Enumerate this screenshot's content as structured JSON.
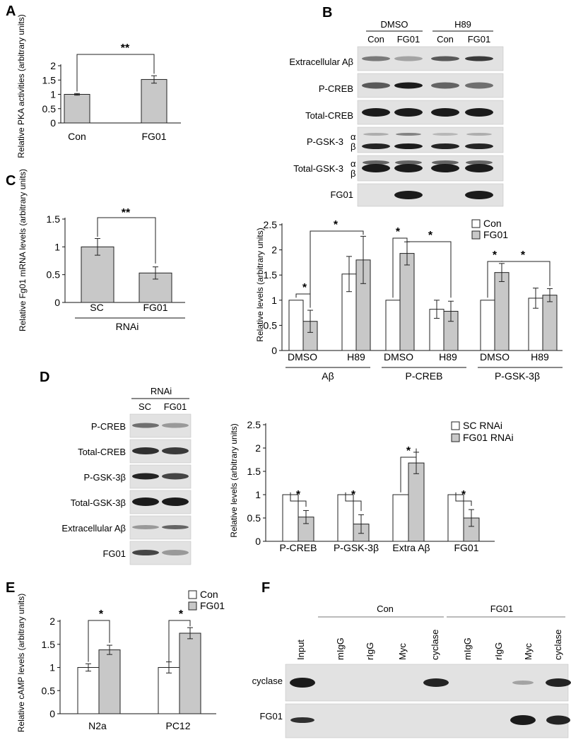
{
  "panel_labels": [
    "A",
    "B",
    "C",
    "D",
    "E",
    "F"
  ],
  "chart_data": [
    {
      "panel": "A",
      "type": "bar",
      "categories": [
        "Con",
        "FG01"
      ],
      "values": [
        1.0,
        1.52
      ],
      "errors": [
        0.03,
        0.13
      ],
      "ylabel": "Relative PKA activities (arbitrary units)",
      "ylim": [
        0,
        2
      ],
      "yticks": [
        "0",
        "0.5",
        "1",
        "1.5",
        "2"
      ],
      "significance": [
        {
          "between": [
            0,
            1
          ],
          "label": "**"
        }
      ]
    },
    {
      "panel": "C",
      "type": "bar",
      "categories": [
        "SC",
        "FG01"
      ],
      "values": [
        1.0,
        0.53
      ],
      "errors": [
        0.15,
        0.11
      ],
      "ylabel": "Relative Fg01 mRNA levels (arbitrary units)",
      "group_label": "RNAi",
      "ylim": [
        0,
        1.5
      ],
      "yticks": [
        "0",
        "0.5",
        "1",
        "1.5"
      ],
      "significance": [
        {
          "between": [
            0,
            1
          ],
          "label": "**"
        }
      ]
    },
    {
      "panel": "B",
      "type": "bar",
      "legend": [
        "Con",
        "FG01"
      ],
      "ylabel": "Relative levels (arbitrary units)",
      "ylim": [
        0,
        2.5
      ],
      "yticks": [
        "0",
        "0.5",
        "1",
        "1.5",
        "2",
        "2.5"
      ],
      "conditions": [
        "DMSO",
        "H89",
        "DMSO",
        "H89",
        "DMSO",
        "H89"
      ],
      "groups": [
        "Aβ",
        "P-CREB",
        "P-GSK-3β"
      ],
      "series": [
        {
          "name": "Con",
          "values": [
            1.0,
            1.52,
            1.0,
            0.82,
            1.0,
            1.04
          ],
          "errors": [
            0,
            0.35,
            0,
            0.18,
            0,
            0.2
          ]
        },
        {
          "name": "FG01",
          "values": [
            0.58,
            1.8,
            1.93,
            0.78,
            1.55,
            1.1
          ],
          "errors": [
            0.22,
            0.47,
            0.23,
            0.2,
            0.18,
            0.13
          ]
        }
      ],
      "significance": [
        "*",
        "*",
        "*",
        "*",
        "*",
        "*"
      ]
    },
    {
      "panel": "D",
      "type": "bar",
      "legend": [
        "SC RNAi",
        "FG01 RNAi"
      ],
      "ylabel": "Relative levels (arbitrary units)",
      "ylim": [
        0,
        2.5
      ],
      "yticks": [
        "0",
        "0.5",
        "1",
        "1.5",
        "2",
        "2.5"
      ],
      "categories": [
        "P-CREB",
        "P-GSK-3β",
        "Extra Aβ",
        "FG01"
      ],
      "series": [
        {
          "name": "SC RNAi",
          "values": [
            1.0,
            1.0,
            1.0,
            1.0
          ],
          "errors": [
            0,
            0,
            0,
            0
          ]
        },
        {
          "name": "FG01 RNAi",
          "values": [
            0.52,
            0.37,
            1.68,
            0.5
          ],
          "errors": [
            0.14,
            0.2,
            0.23,
            0.18
          ]
        }
      ],
      "significance": [
        "*",
        "*",
        "*",
        "*"
      ]
    },
    {
      "panel": "E",
      "type": "bar",
      "legend": [
        "Con",
        "FG01"
      ],
      "ylabel": "Relative cAMP levels (arbitrary units)",
      "ylim": [
        0,
        2
      ],
      "yticks": [
        "0",
        "0.5",
        "1",
        "1.5",
        "2"
      ],
      "categories": [
        "N2a",
        "PC12"
      ],
      "series": [
        {
          "name": "Con",
          "values": [
            1.0,
            1.0
          ],
          "errors": [
            0.08,
            0.12
          ]
        },
        {
          "name": "FG01",
          "values": [
            1.38,
            1.74
          ],
          "errors": [
            0.1,
            0.12
          ]
        }
      ],
      "significance": [
        "*",
        "*"
      ]
    }
  ],
  "blot_B": {
    "header_groups": [
      "DMSO",
      "H89"
    ],
    "lanes": [
      "Con",
      "FG01",
      "Con",
      "FG01"
    ],
    "rows": [
      "Extracellular Aβ",
      "P-CREB",
      "Total-CREB",
      "P-GSK-3",
      "Total-GSK-3",
      "FG01"
    ],
    "alpha": "α",
    "beta": "β"
  },
  "blot_D": {
    "header": "RNAi",
    "lanes": [
      "SC",
      "FG01"
    ],
    "rows": [
      "P-CREB",
      "Total-CREB",
      "P-GSK-3β",
      "Total-GSK-3β",
      "Extracellular Aβ",
      "FG01"
    ]
  },
  "blot_F": {
    "groups": [
      "Con",
      "FG01"
    ],
    "lanes": [
      "Input",
      "mIgG",
      "rIgG",
      "Myc",
      "cyclase",
      "mIgG",
      "rIgG",
      "Myc",
      "cyclase"
    ],
    "rows": [
      "cyclase",
      "FG01"
    ]
  }
}
